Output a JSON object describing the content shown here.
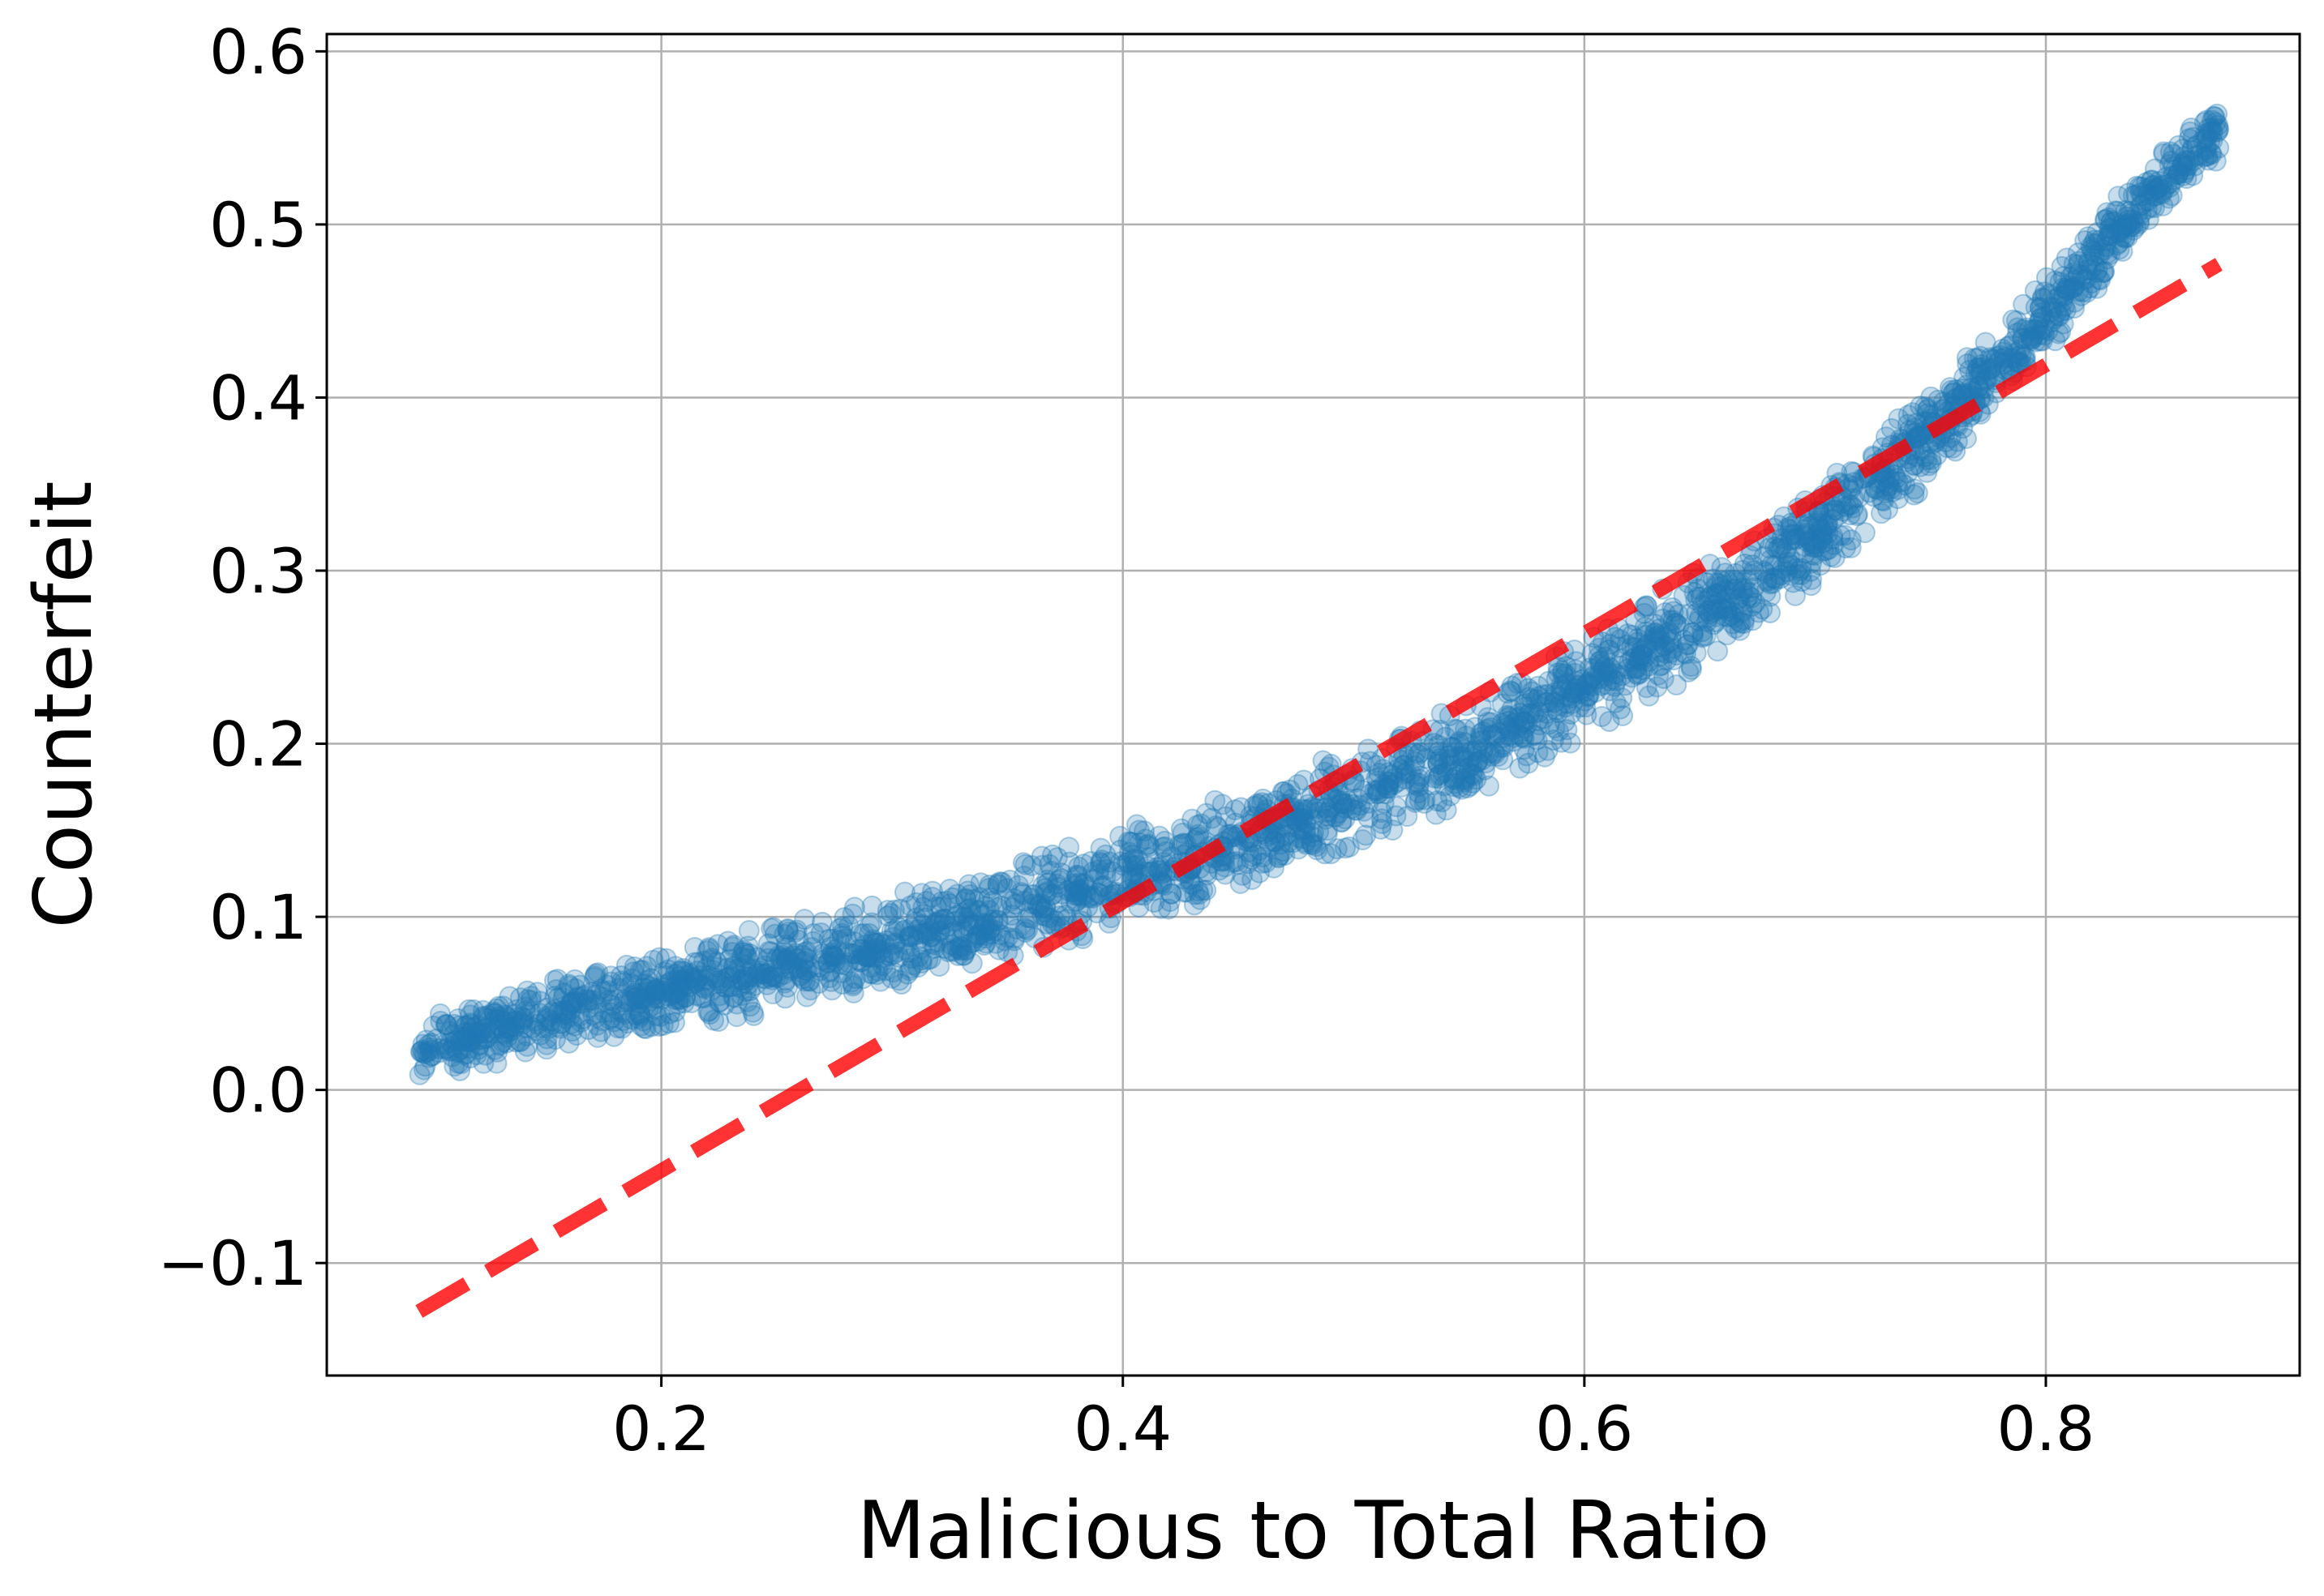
{
  "chart_data": {
    "type": "scatter",
    "title": "",
    "xlabel": "Malicious to Total Ratio",
    "ylabel": "Counterfeit",
    "xlim": [
      0.055,
      0.91
    ],
    "ylim": [
      -0.165,
      0.61
    ],
    "xticks": [
      0.2,
      0.4,
      0.6,
      0.8
    ],
    "xtick_labels": [
      "0.2",
      "0.4",
      "0.6",
      "0.8"
    ],
    "yticks": [
      -0.1,
      0.0,
      0.1,
      0.2,
      0.3,
      0.4,
      0.5,
      0.6
    ],
    "ytick_labels": [
      "−0.1",
      "0.0",
      "0.1",
      "0.2",
      "0.3",
      "0.4",
      "0.5",
      "0.6"
    ],
    "grid": true,
    "legend": "none",
    "series": [
      {
        "kind": "scatter",
        "color": "#1f77b4",
        "alpha": 0.25,
        "x": [
          0.095,
          0.1,
          0.11,
          0.12,
          0.13,
          0.14,
          0.15,
          0.16,
          0.17,
          0.18,
          0.19,
          0.2,
          0.21,
          0.22,
          0.23,
          0.24,
          0.25,
          0.26,
          0.27,
          0.28,
          0.29,
          0.3,
          0.31,
          0.32,
          0.33,
          0.34,
          0.35,
          0.36,
          0.37,
          0.38,
          0.39,
          0.4,
          0.41,
          0.42,
          0.43,
          0.44,
          0.45,
          0.46,
          0.47,
          0.48,
          0.49,
          0.5,
          0.51,
          0.52,
          0.53,
          0.54,
          0.55,
          0.56,
          0.57,
          0.58,
          0.59,
          0.6,
          0.61,
          0.62,
          0.63,
          0.64,
          0.65,
          0.66,
          0.67,
          0.68,
          0.69,
          0.7,
          0.71,
          0.72,
          0.73,
          0.74,
          0.75,
          0.76,
          0.77,
          0.78,
          0.79,
          0.8,
          0.81,
          0.82,
          0.83,
          0.84,
          0.85,
          0.86,
          0.87,
          0.875
        ],
        "y": [
          0.022,
          0.025,
          0.029,
          0.032,
          0.035,
          0.038,
          0.041,
          0.044,
          0.047,
          0.05,
          0.053,
          0.056,
          0.059,
          0.062,
          0.065,
          0.068,
          0.071,
          0.074,
          0.077,
          0.08,
          0.083,
          0.086,
          0.089,
          0.092,
          0.096,
          0.1,
          0.103,
          0.107,
          0.111,
          0.114,
          0.118,
          0.122,
          0.126,
          0.13,
          0.134,
          0.138,
          0.143,
          0.147,
          0.152,
          0.157,
          0.162,
          0.168,
          0.173,
          0.179,
          0.185,
          0.191,
          0.197,
          0.204,
          0.211,
          0.218,
          0.225,
          0.232,
          0.24,
          0.248,
          0.256,
          0.264,
          0.273,
          0.282,
          0.291,
          0.3,
          0.31,
          0.32,
          0.331,
          0.342,
          0.354,
          0.366,
          0.378,
          0.391,
          0.404,
          0.418,
          0.433,
          0.448,
          0.463,
          0.479,
          0.495,
          0.511,
          0.527,
          0.54,
          0.55,
          0.555
        ],
        "spread": [
          0.02,
          0.02,
          0.021,
          0.021,
          0.022,
          0.022,
          0.023,
          0.023,
          0.024,
          0.024,
          0.025,
          0.025,
          0.025,
          0.026,
          0.026,
          0.026,
          0.027,
          0.027,
          0.027,
          0.027,
          0.028,
          0.028,
          0.028,
          0.028,
          0.029,
          0.029,
          0.029,
          0.029,
          0.03,
          0.03,
          0.03,
          0.03,
          0.03,
          0.03,
          0.031,
          0.031,
          0.031,
          0.031,
          0.031,
          0.031,
          0.031,
          0.031,
          0.031,
          0.031,
          0.031,
          0.031,
          0.031,
          0.031,
          0.031,
          0.031,
          0.031,
          0.031,
          0.031,
          0.031,
          0.031,
          0.031,
          0.03,
          0.03,
          0.03,
          0.03,
          0.03,
          0.029,
          0.029,
          0.029,
          0.028,
          0.028,
          0.027,
          0.027,
          0.026,
          0.026,
          0.025,
          0.025,
          0.024,
          0.024,
          0.023,
          0.023,
          0.022,
          0.022,
          0.021,
          0.021
        ]
      },
      {
        "kind": "line",
        "color": "#ff0000",
        "alpha": 0.8,
        "dash": "dashed",
        "x": [
          0.095,
          0.875
        ],
        "y": [
          -0.128,
          0.477
        ]
      }
    ]
  }
}
